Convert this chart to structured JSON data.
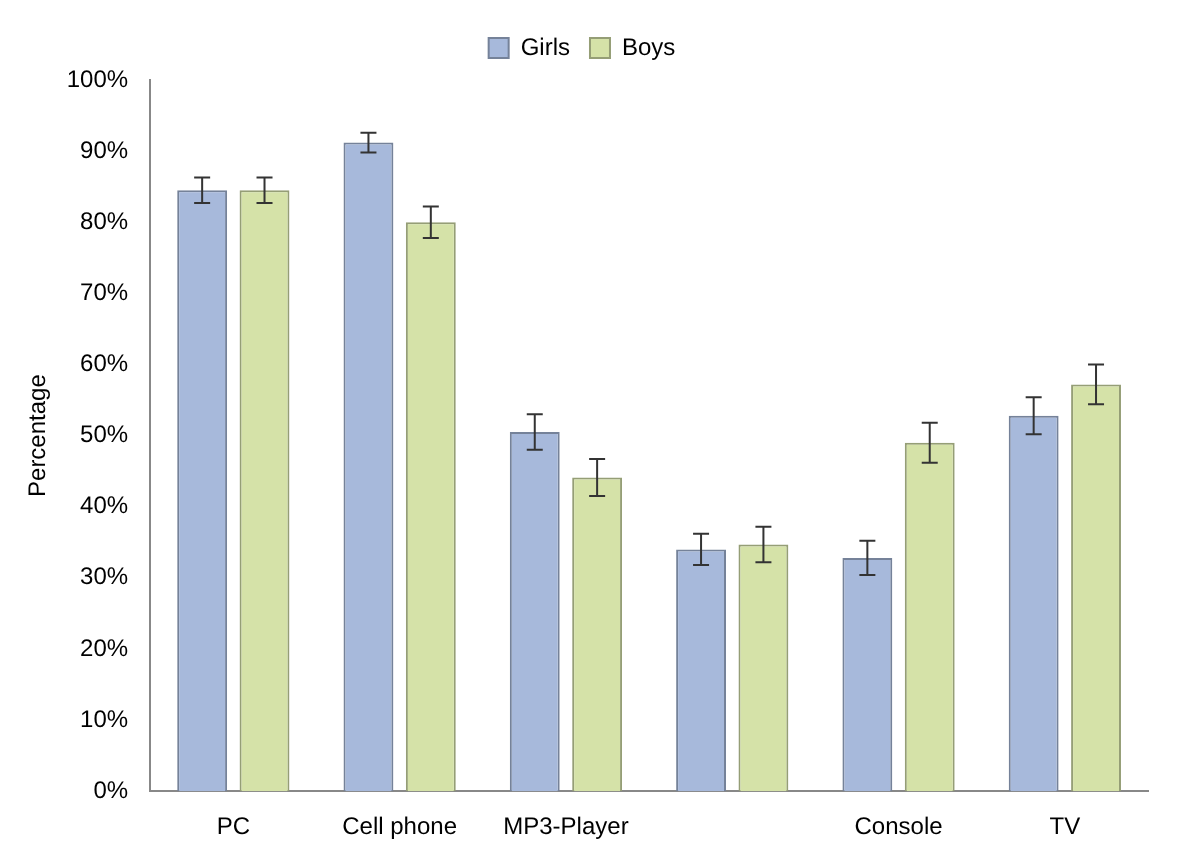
{
  "chart_data": {
    "type": "bar",
    "ylabel": "Percentage",
    "categories": [
      "PC",
      "Cell phone",
      "MP3-Player",
      null,
      "Console",
      "TV"
    ],
    "series": [
      {
        "name": "Girls",
        "color": "#a7b9db",
        "values": [
          84.5,
          91.2,
          50.5,
          34,
          32.8,
          52.8
        ],
        "errors": [
          1.8,
          1.4,
          2.5,
          2.2,
          2.4,
          2.6
        ]
      },
      {
        "name": "Boys",
        "color": "#d5e2a8",
        "values": [
          84.5,
          80,
          44.1,
          34.7,
          49,
          57.2
        ],
        "errors": [
          1.8,
          2.2,
          2.6,
          2.5,
          2.8,
          2.8
        ]
      }
    ],
    "ylim": [
      0,
      100
    ],
    "yticks": [
      {
        "value": 0,
        "label": "0%"
      },
      {
        "value": 10,
        "label": "10%"
      },
      {
        "value": 20,
        "label": "20%"
      },
      {
        "value": 30,
        "label": "30%"
      },
      {
        "value": 40,
        "label": "40%"
      },
      {
        "value": 50,
        "label": "50%"
      },
      {
        "value": 60,
        "label": "60%"
      },
      {
        "value": 70,
        "label": "70%"
      },
      {
        "value": 80,
        "label": "80%"
      },
      {
        "value": 90,
        "label": "90%"
      },
      {
        "value": 100,
        "label": "100%"
      }
    ],
    "grid": false,
    "legend": "top"
  }
}
